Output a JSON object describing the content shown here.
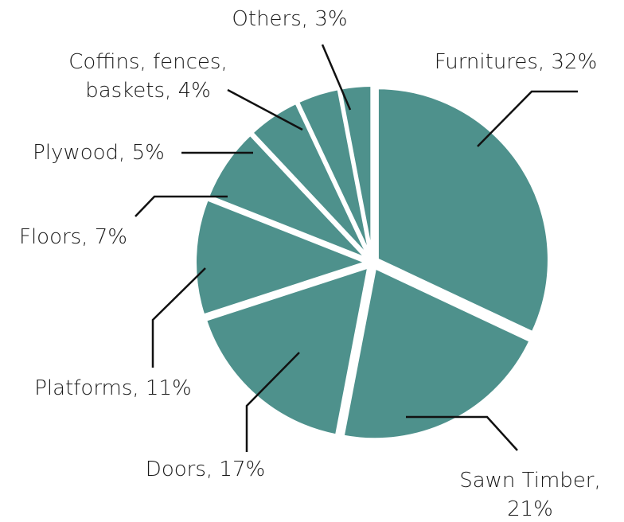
{
  "chart_data": {
    "type": "pie",
    "title": "",
    "slice_color": "#4e918c",
    "leader_color": "#111111",
    "background": "#ffffff",
    "slices": [
      {
        "name": "Furnitures",
        "value": 32,
        "label_lines": [
          "Furnitures, 32%"
        ]
      },
      {
        "name": "Sawn Timber",
        "value": 21,
        "label_lines": [
          "Sawn Timber,",
          "21%"
        ]
      },
      {
        "name": "Doors",
        "value": 17,
        "label_lines": [
          "Doors, 17%"
        ]
      },
      {
        "name": "Platforms",
        "value": 11,
        "label_lines": [
          "Platforms, 11%"
        ]
      },
      {
        "name": "Floors",
        "value": 7,
        "label_lines": [
          "Floors, 7%"
        ]
      },
      {
        "name": "Plywood",
        "value": 5,
        "label_lines": [
          "Plywood, 5%"
        ]
      },
      {
        "name": "Coffins, fences, baskets",
        "value": 4,
        "label_lines": [
          "Coffins, fences,",
          "baskets, 4%"
        ]
      },
      {
        "name": "Others",
        "value": 3,
        "label_lines": [
          "Others, 3%"
        ]
      }
    ]
  }
}
